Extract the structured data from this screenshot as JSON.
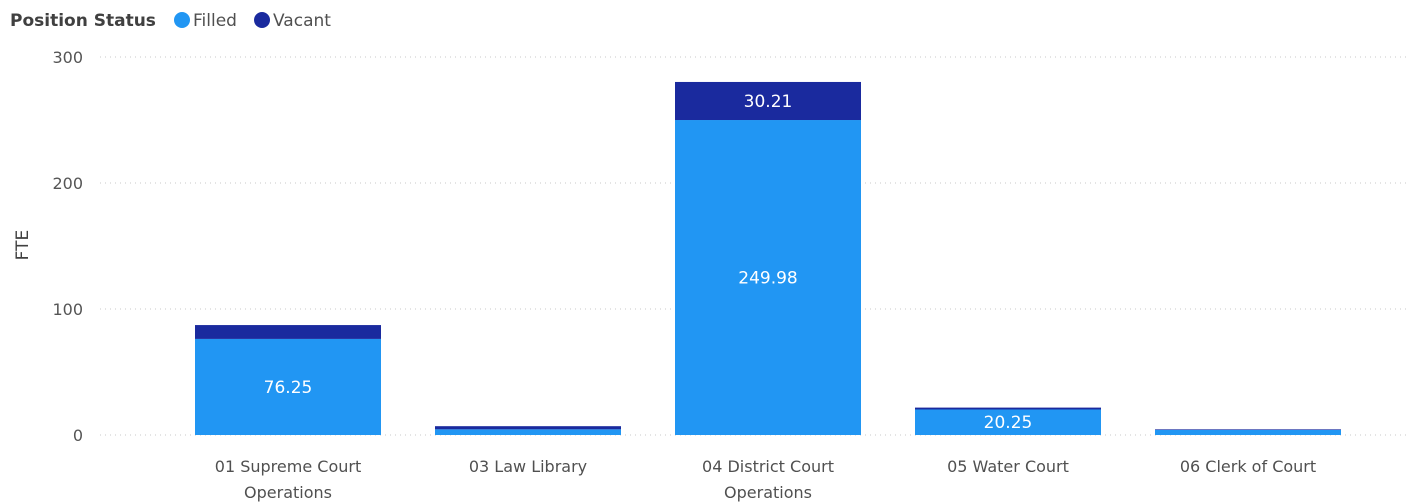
{
  "legend": {
    "title": "Position Status",
    "items": [
      {
        "label": "Filled",
        "color": "#2196f3"
      },
      {
        "label": "Vacant",
        "color": "#1a2a9e"
      }
    ]
  },
  "chart_data": {
    "type": "bar",
    "stacked": true,
    "categories": [
      [
        "01 Supreme Court",
        "Operations"
      ],
      [
        "03 Law Library"
      ],
      [
        "04 District Court",
        "Operations"
      ],
      [
        "05 Water Court"
      ],
      [
        "06 Clerk of Court"
      ]
    ],
    "series": [
      {
        "name": "Filled",
        "color": "#2196f3",
        "values": [
          76.25,
          4.5,
          249.98,
          20.25,
          4.0
        ],
        "labels": [
          "76.25",
          "",
          "249.98",
          "20.25",
          ""
        ]
      },
      {
        "name": "Vacant",
        "color": "#1a2a9e",
        "values": [
          11.0,
          2.5,
          30.21,
          1.5,
          0.5
        ],
        "labels": [
          "",
          "",
          "30.21",
          "",
          ""
        ]
      }
    ],
    "ylabel": "FTE",
    "ylim": [
      0,
      300
    ],
    "yticks": [
      0,
      100,
      200,
      300
    ],
    "grid": true,
    "legend_position": "top-left"
  }
}
